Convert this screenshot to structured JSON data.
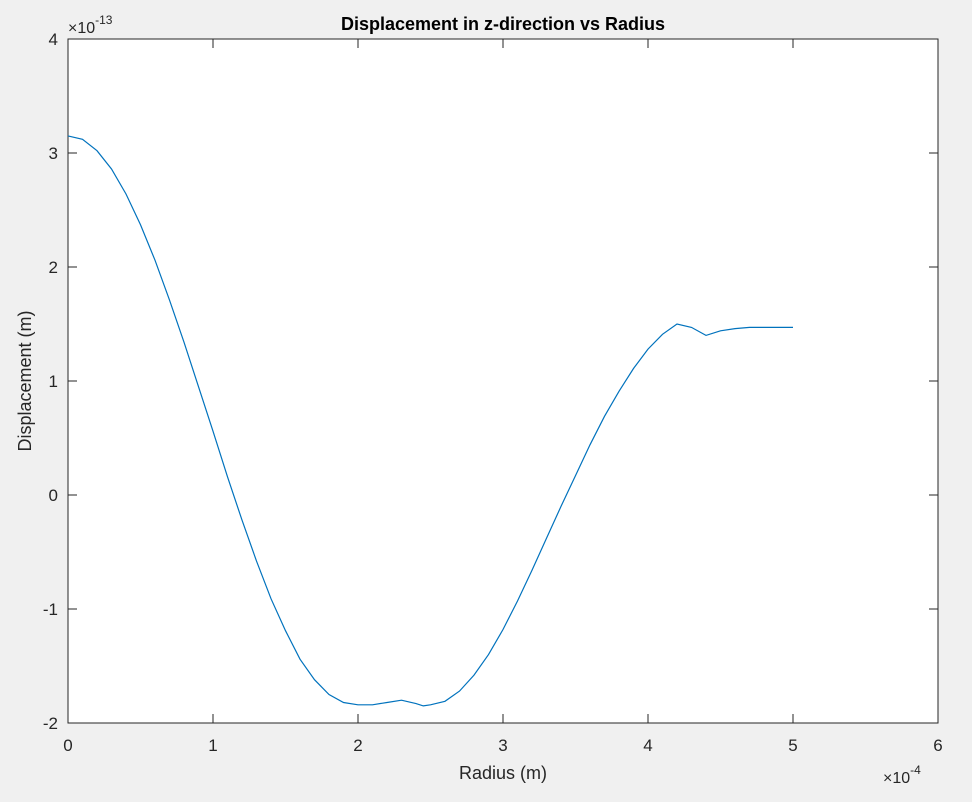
{
  "chart_data": {
    "type": "line",
    "title": "Displacement in z-direction vs Radius",
    "xlabel": "Radius (m)",
    "ylabel": "Displacement (m)",
    "x_multiplier": {
      "base": "×10",
      "exponent": "-4"
    },
    "y_multiplier": {
      "base": "×10",
      "exponent": "-13"
    },
    "xlim": [
      0,
      6
    ],
    "ylim": [
      -2,
      4
    ],
    "x_ticks": [
      "0",
      "1",
      "2",
      "3",
      "4",
      "5",
      "6"
    ],
    "y_ticks": [
      "-2",
      "-1",
      "0",
      "1",
      "2",
      "3",
      "4"
    ],
    "grid": false,
    "line_color": "#0072bd",
    "series": [
      {
        "x": [
          0.0,
          0.1,
          0.2,
          0.3,
          0.4,
          0.5,
          0.6,
          0.7,
          0.8,
          0.9,
          1.0,
          1.1,
          1.2,
          1.3,
          1.4,
          1.5,
          1.6,
          1.7,
          1.8,
          1.9,
          2.0,
          2.1,
          2.2,
          2.3,
          2.4,
          2.45,
          2.5,
          2.6,
          2.7,
          2.8,
          2.9,
          3.0,
          3.1,
          3.2,
          3.3,
          3.4,
          3.5,
          3.6,
          3.7,
          3.8,
          3.9,
          4.0,
          4.1,
          4.2,
          4.3,
          4.4,
          4.5,
          4.6,
          4.7,
          4.8,
          4.9,
          5.0
        ],
        "y": [
          3.15,
          3.12,
          3.02,
          2.86,
          2.64,
          2.37,
          2.06,
          1.71,
          1.34,
          0.95,
          0.56,
          0.16,
          -0.22,
          -0.58,
          -0.91,
          -1.19,
          -1.44,
          -1.62,
          -1.75,
          -1.82,
          -1.84,
          -1.84,
          -1.82,
          -1.8,
          -1.83,
          -1.85,
          -1.84,
          -1.81,
          -1.72,
          -1.58,
          -1.4,
          -1.18,
          -0.93,
          -0.66,
          -0.38,
          -0.1,
          0.17,
          0.44,
          0.69,
          0.91,
          1.11,
          1.28,
          1.41,
          1.5,
          1.47,
          1.4,
          1.44,
          1.46,
          1.47,
          1.47,
          1.47,
          1.47
        ]
      }
    ]
  }
}
